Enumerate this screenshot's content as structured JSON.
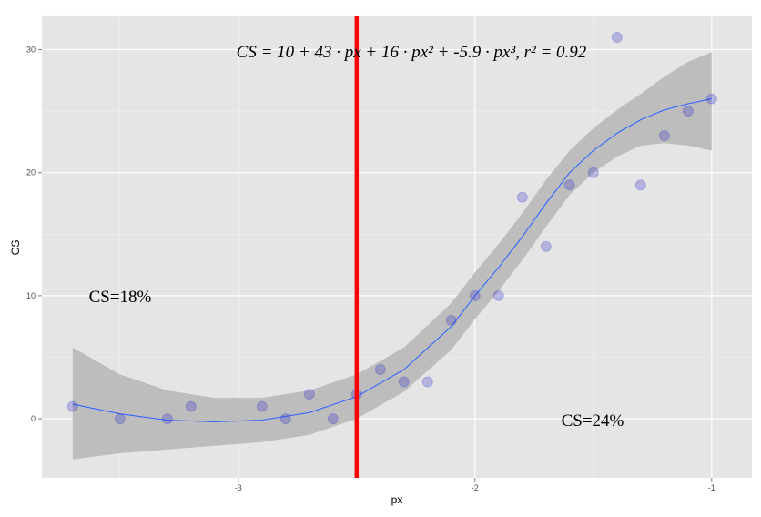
{
  "chart_data": {
    "type": "scatter",
    "title": "",
    "xlabel": "px",
    "ylabel": "CS",
    "xlim": [
      -3.83,
      -0.83
    ],
    "ylim": [
      -4.8,
      32.7
    ],
    "x_ticks": [
      -3,
      -2,
      -1
    ],
    "y_ticks": [
      0,
      10,
      20,
      30
    ],
    "grid": true,
    "points": {
      "color": "#3333cc",
      "x": [
        -3.7,
        -3.5,
        -3.3,
        -3.2,
        -2.9,
        -2.8,
        -2.7,
        -2.6,
        -2.5,
        -2.4,
        -2.3,
        -2.2,
        -2.1,
        -2.0,
        -1.9,
        -1.8,
        -1.7,
        -1.6,
        -1.5,
        -1.4,
        -1.3,
        -1.2,
        -1.1,
        -1.0
      ],
      "y": [
        1,
        0,
        0,
        1,
        1,
        0,
        2,
        0,
        2,
        4,
        3,
        3,
        8,
        10,
        10,
        18,
        14,
        19,
        20,
        31,
        19,
        23,
        25,
        26
      ]
    },
    "smooth": {
      "color": "#3366ff",
      "band_color": "#bdbdbd",
      "x": [
        -3.7,
        -3.5,
        -3.3,
        -3.1,
        -2.9,
        -2.7,
        -2.5,
        -2.3,
        -2.1,
        -2.0,
        -1.9,
        -1.8,
        -1.7,
        -1.6,
        -1.5,
        -1.4,
        -1.3,
        -1.2,
        -1.1,
        -1.0
      ],
      "y": [
        1.2,
        0.4,
        -0.1,
        -0.25,
        -0.1,
        0.5,
        1.8,
        4.0,
        7.5,
        10.0,
        12.3,
        14.8,
        17.5,
        20.0,
        21.8,
        23.2,
        24.3,
        25.1,
        25.6,
        26.0
      ],
      "ymin": [
        -3.3,
        -2.8,
        -2.5,
        -2.2,
        -1.9,
        -1.3,
        0.0,
        2.2,
        5.6,
        8.1,
        10.4,
        12.9,
        15.6,
        18.2,
        20.0,
        21.3,
        22.2,
        22.4,
        22.2,
        21.8
      ],
      "ymax": [
        5.8,
        3.6,
        2.3,
        1.7,
        1.7,
        2.3,
        3.6,
        5.8,
        9.4,
        11.9,
        14.2,
        16.7,
        19.4,
        21.8,
        23.6,
        25.1,
        26.4,
        27.8,
        29.0,
        29.8
      ]
    },
    "vline": {
      "x": -2.5,
      "color": "#ff0000"
    },
    "annotations": {
      "equation": "CS = 10 + 43 · px + 16 · px² + -5.9 · px³,  r² = 0.92",
      "left_label": "CS=18%",
      "right_label": "CS=24%"
    }
  }
}
